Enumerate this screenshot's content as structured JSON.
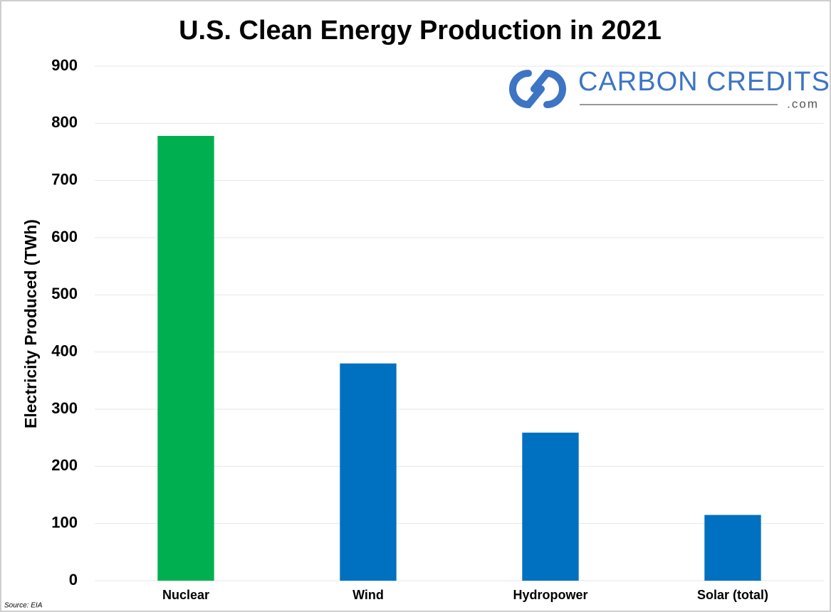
{
  "chart_data": {
    "type": "bar",
    "title": "U.S. Clean Energy Production in 2021",
    "y_label": "Electricity Produced  (TWh)",
    "categories": [
      "Nuclear",
      "Wind",
      "Hydropower",
      "Solar (total)"
    ],
    "values": [
      778,
      380,
      259,
      115
    ],
    "colors": [
      "#00b050",
      "#0070c0",
      "#0070c0",
      "#0070c0"
    ],
    "ylim": [
      0,
      900
    ],
    "yticks": [
      0,
      100,
      200,
      300,
      400,
      500,
      600,
      700,
      800,
      900
    ],
    "grid": true,
    "logo": {
      "text": "CARBON CREDITS",
      "subtext": ".com"
    },
    "source": "Source: EIA"
  }
}
